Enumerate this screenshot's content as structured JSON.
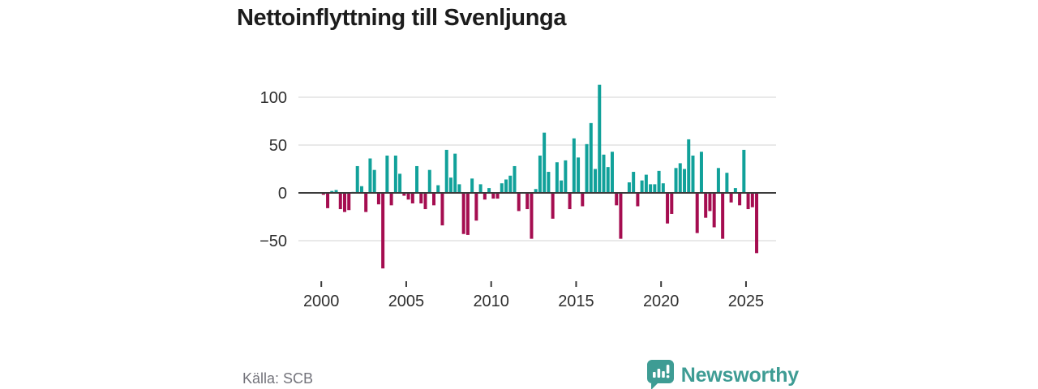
{
  "title": "Nettoinflyttning till Svenljunga",
  "source": "Källa: SCB",
  "branding": {
    "name": "Newsworthy",
    "color": "#3e9c94",
    "icon": "newsworthy-speech-bubble-chart-icon"
  },
  "chart_data": {
    "type": "bar",
    "title": "Nettoinflyttning till Svenljunga",
    "x_unit": "quarter",
    "start": "2000 K1",
    "end": "2025 K3",
    "positive_color": "#11a19a",
    "negative_color": "#a50d50",
    "grid": "horizontal",
    "legend_position": "none",
    "ylim": [
      -85,
      120
    ],
    "y_ticks": [
      100,
      50,
      0,
      -50
    ],
    "y_tick_labels": [
      "100",
      "50",
      "0",
      "−50"
    ],
    "x_ticks": [
      2000,
      2005,
      2010,
      2015,
      2020,
      2025
    ],
    "x_tick_labels": [
      "2000",
      "2005",
      "2010",
      "2015",
      "2020",
      "2025"
    ],
    "categories": [
      "2000K1",
      "2000K2",
      "2000K3",
      "2000K4",
      "2001K1",
      "2001K2",
      "2001K3",
      "2001K4",
      "2002K1",
      "2002K2",
      "2002K3",
      "2002K4",
      "2003K1",
      "2003K2",
      "2003K3",
      "2003K4",
      "2004K1",
      "2004K2",
      "2004K3",
      "2004K4",
      "2005K1",
      "2005K2",
      "2005K3",
      "2005K4",
      "2006K1",
      "2006K2",
      "2006K3",
      "2006K4",
      "2007K1",
      "2007K2",
      "2007K3",
      "2007K4",
      "2008K1",
      "2008K2",
      "2008K3",
      "2008K4",
      "2009K1",
      "2009K2",
      "2009K3",
      "2009K4",
      "2010K1",
      "2010K2",
      "2010K3",
      "2010K4",
      "2011K1",
      "2011K2",
      "2011K3",
      "2011K4",
      "2012K1",
      "2012K2",
      "2012K3",
      "2012K4",
      "2013K1",
      "2013K2",
      "2013K3",
      "2013K4",
      "2014K1",
      "2014K2",
      "2014K3",
      "2014K4",
      "2015K1",
      "2015K2",
      "2015K3",
      "2015K4",
      "2016K1",
      "2016K2",
      "2016K3",
      "2016K4",
      "2017K1",
      "2017K2",
      "2017K3",
      "2017K4",
      "2018K1",
      "2018K2",
      "2018K3",
      "2018K4",
      "2019K1",
      "2019K2",
      "2019K3",
      "2019K4",
      "2020K1",
      "2020K2",
      "2020K3",
      "2020K4",
      "2021K1",
      "2021K2",
      "2021K3",
      "2021K4",
      "2022K1",
      "2022K2",
      "2022K3",
      "2022K4",
      "2023K1",
      "2023K2",
      "2023K3",
      "2023K4",
      "2024K1",
      "2024K2",
      "2024K3",
      "2024K4",
      "2025K1",
      "2025K2",
      "2025K3"
    ],
    "values": [
      -2,
      -16,
      2,
      3,
      -17,
      -20,
      -18,
      1,
      28,
      7,
      -20,
      36,
      24,
      -12,
      -79,
      39,
      -13,
      39,
      20,
      -3,
      -7,
      -11,
      28,
      -11,
      -17,
      24,
      -13,
      8,
      -34,
      45,
      16,
      41,
      9,
      -43,
      -44,
      15,
      -29,
      9,
      -7,
      5,
      -6,
      -6,
      10,
      14,
      18,
      28,
      -19,
      0,
      -17,
      -48,
      4,
      39,
      63,
      22,
      -27,
      32,
      13,
      34,
      -17,
      57,
      37,
      -14,
      51,
      73,
      25,
      113,
      40,
      27,
      43,
      -13,
      -48,
      0,
      11,
      22,
      -14,
      13,
      19,
      9,
      9,
      23,
      10,
      -32,
      -22,
      26,
      31,
      25,
      56,
      39,
      -42,
      43,
      -26,
      -19,
      -36,
      26,
      -48,
      21,
      -10,
      5,
      -13,
      45,
      -17,
      -15,
      -63
    ]
  }
}
